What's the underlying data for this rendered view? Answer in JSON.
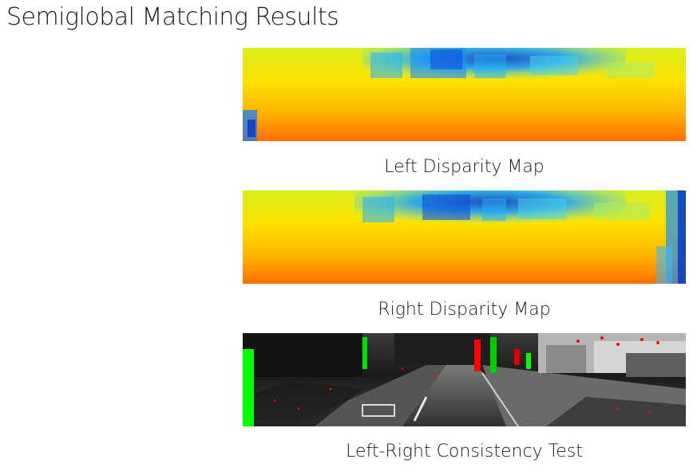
{
  "page": {
    "title": "Semiglobal Matching Results"
  },
  "figures": [
    {
      "caption": "Left Disparity Map"
    },
    {
      "caption": "Right Disparity Map"
    },
    {
      "caption": "Left-Right Consistency Test"
    }
  ],
  "colors": {
    "near": "#ff6a00",
    "mid": "#ffd400",
    "far": "#19a7ff",
    "farthest": "#0037c8",
    "inconsistent_left": "#00ff00",
    "inconsistent_right": "#ff0000"
  }
}
